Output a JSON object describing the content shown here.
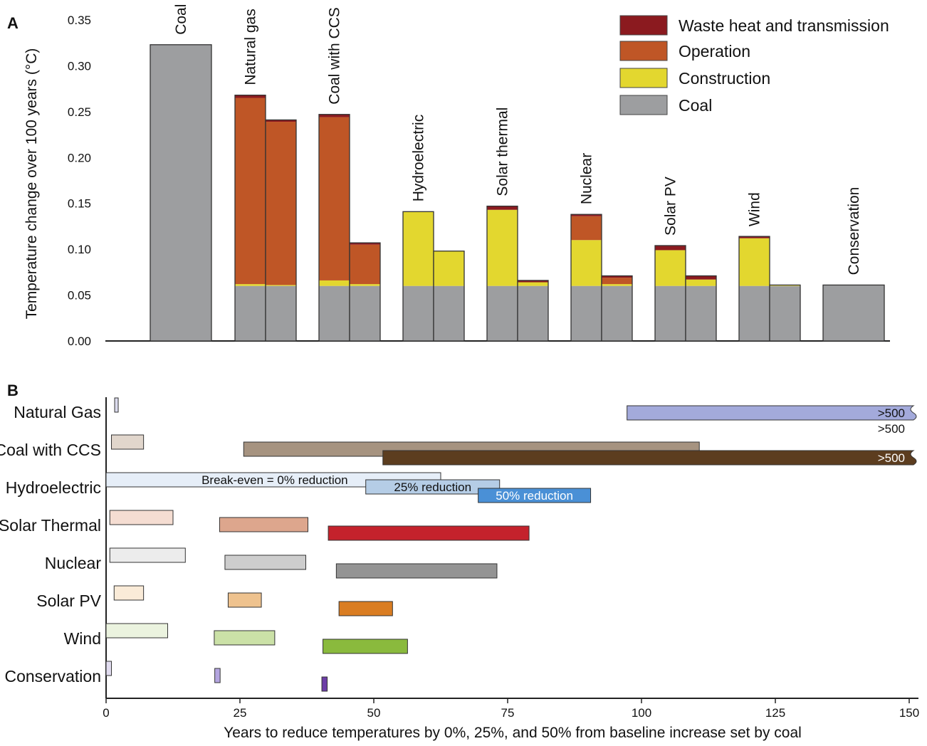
{
  "chart_data": [
    {
      "panel": "A",
      "type": "bar",
      "stacked": true,
      "ylabel": "Temperature change over 100 years (°C)",
      "ylim": [
        0,
        0.35
      ],
      "yticks": [
        "0.00",
        "0.05",
        "0.10",
        "0.15",
        "0.20",
        "0.25",
        "0.30",
        "0.35"
      ],
      "ytick_values": [
        0,
        0.05,
        0.1,
        0.15,
        0.2,
        0.25,
        0.3,
        0.35
      ],
      "legend_position": "top-right",
      "legend": [
        {
          "key": "waste",
          "label": "Waste heat and transmission",
          "color": "#8b1a1f"
        },
        {
          "key": "operation",
          "label": "Operation",
          "color": "#bf5626"
        },
        {
          "key": "construction",
          "label": "Construction",
          "color": "#e3d72f"
        },
        {
          "key": "coal",
          "label": "Coal",
          "color": "#9d9ea0"
        }
      ],
      "groups": [
        {
          "label": "Coal",
          "bars": [
            {
              "coal": 0.323,
              "construction": 0,
              "operation": 0,
              "waste": 0
            }
          ]
        },
        {
          "label": "Natural gas",
          "bars": [
            {
              "coal": 0.06,
              "construction": 0.002,
              "operation": 0.203,
              "waste": 0.003
            },
            {
              "coal": 0.06,
              "construction": 0.001,
              "operation": 0.178,
              "waste": 0.002
            }
          ]
        },
        {
          "label": "Coal with CCS",
          "bars": [
            {
              "coal": 0.06,
              "construction": 0.006,
              "operation": 0.178,
              "waste": 0.003
            },
            {
              "coal": 0.06,
              "construction": 0.002,
              "operation": 0.043,
              "waste": 0.002
            }
          ]
        },
        {
          "label": "Hydroelectric",
          "bars": [
            {
              "coal": 0.06,
              "construction": 0.081,
              "operation": 0,
              "waste": 0
            },
            {
              "coal": 0.06,
              "construction": 0.038,
              "operation": 0,
              "waste": 0
            }
          ]
        },
        {
          "label": "Solar thermal",
          "bars": [
            {
              "coal": 0.06,
              "construction": 0.083,
              "operation": 0,
              "waste": 0.004
            },
            {
              "coal": 0.06,
              "construction": 0.004,
              "operation": 0,
              "waste": 0.002
            }
          ]
        },
        {
          "label": "Nuclear",
          "bars": [
            {
              "coal": 0.06,
              "construction": 0.05,
              "operation": 0.026,
              "waste": 0.002
            },
            {
              "coal": 0.06,
              "construction": 0.002,
              "operation": 0.007,
              "waste": 0.002
            }
          ]
        },
        {
          "label": "Solar PV",
          "bars": [
            {
              "coal": 0.06,
              "construction": 0.039,
              "operation": 0,
              "waste": 0.005
            },
            {
              "coal": 0.06,
              "construction": 0.007,
              "operation": 0,
              "waste": 0.004
            }
          ]
        },
        {
          "label": "Wind",
          "bars": [
            {
              "coal": 0.06,
              "construction": 0.052,
              "operation": 0,
              "waste": 0.002
            },
            {
              "coal": 0.06,
              "construction": 0.001,
              "operation": 0,
              "waste": 0
            }
          ]
        },
        {
          "label": "Conservation",
          "bars": [
            {
              "coal": 0.061,
              "construction": 0,
              "operation": 0,
              "waste": 0
            }
          ]
        }
      ]
    },
    {
      "panel": "B",
      "type": "bar",
      "orientation": "horizontal",
      "xlabel": "Years to reduce temperatures by 0%, 25%, and 50% from baseline increase set by coal",
      "xlim": [
        0,
        150
      ],
      "xticks": [
        "0",
        "25",
        "50",
        "75",
        "100",
        "125",
        "150"
      ],
      "xtick_values": [
        0,
        25,
        50,
        75,
        100,
        125,
        150
      ],
      "series_names": [
        "Break-even = 0% reduction",
        "25% reduction",
        "50% reduction"
      ],
      "overflow_label": ">500",
      "rows": [
        {
          "label": "Natural Gas",
          "bars": [
            {
              "start": 1.6,
              "end": 2.2,
              "color": "#dcdcee"
            },
            {
              "start": 97.3,
              "end": 150,
              "color": "#a3aadb",
              "overflow": true,
              "text": ">500"
            },
            {
              "start": 150,
              "end": 150,
              "color": "#5c4a2a",
              "overflow": true,
              "text": ">500",
              "hidden": true
            }
          ],
          "note": ">500"
        },
        {
          "label": "Coal with CCS",
          "bars": [
            {
              "start": 1.0,
              "end": 7.0,
              "color": "#e1d6cc"
            },
            {
              "start": 25.7,
              "end": 110.8,
              "color": "#a69380"
            },
            {
              "start": 51.7,
              "end": 150,
              "color": "#5c3d1f",
              "overflow": true,
              "text": ">500"
            }
          ]
        },
        {
          "label": "Hydroelectric",
          "bars": [
            {
              "start": 0,
              "end": 62.5,
              "color": "#e6eef8",
              "text": "Break-even = 0% reduction"
            },
            {
              "start": 48.5,
              "end": 73.5,
              "color": "#b5cde6",
              "text": "25% reduction"
            },
            {
              "start": 69.5,
              "end": 90.5,
              "color": "#4a90d6",
              "text": "50% reduction"
            }
          ]
        },
        {
          "label": "Solar Thermal",
          "bars": [
            {
              "start": 0.7,
              "end": 12.5,
              "color": "#f5ddd2"
            },
            {
              "start": 21.2,
              "end": 37.7,
              "color": "#dda68d"
            },
            {
              "start": 41.5,
              "end": 79.0,
              "color": "#c4222c"
            }
          ]
        },
        {
          "label": "Nuclear",
          "bars": [
            {
              "start": 0.7,
              "end": 14.8,
              "color": "#ececec"
            },
            {
              "start": 22.2,
              "end": 37.3,
              "color": "#cdcdcd"
            },
            {
              "start": 43.0,
              "end": 73.0,
              "color": "#949494"
            }
          ]
        },
        {
          "label": "Solar PV",
          "bars": [
            {
              "start": 1.5,
              "end": 7.0,
              "color": "#faebd8"
            },
            {
              "start": 22.8,
              "end": 29.0,
              "color": "#eec28e"
            },
            {
              "start": 43.5,
              "end": 53.5,
              "color": "#da7d22"
            }
          ]
        },
        {
          "label": "Wind",
          "bars": [
            {
              "start": 0,
              "end": 11.5,
              "color": "#ebf3df"
            },
            {
              "start": 20.2,
              "end": 31.5,
              "color": "#cbe1a7"
            },
            {
              "start": 40.5,
              "end": 56.3,
              "color": "#8aba3d"
            }
          ]
        },
        {
          "label": "Conservation",
          "bars": [
            {
              "start": 0,
              "end": 1.0,
              "color": "#e2ddf0"
            },
            {
              "start": 20.3,
              "end": 21.3,
              "color": "#b4a5e0"
            },
            {
              "start": 40.3,
              "end": 41.3,
              "color": "#6d3ea7"
            }
          ]
        }
      ]
    }
  ]
}
